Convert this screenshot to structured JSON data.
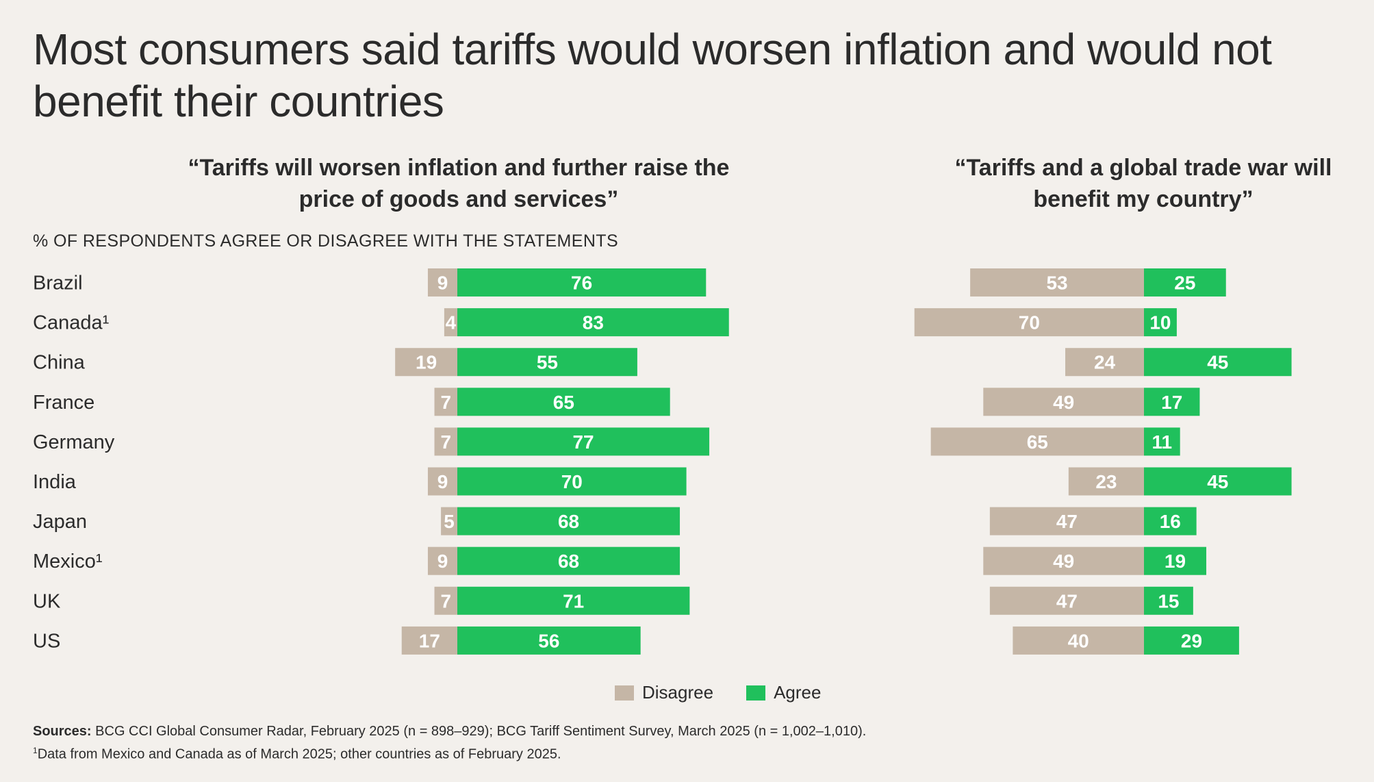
{
  "title": "Most consumers said tariffs would worsen inflation and would not benefit their countries",
  "unit_label": "% OF RESPONDENTS AGREE OR DISAGREE WITH THE STATEMENTS",
  "legend": {
    "disagree": "Disagree",
    "agree": "Agree"
  },
  "colors": {
    "disagree": "#c5b6a6",
    "agree": "#20c05c",
    "background": "#f3f0ec"
  },
  "footer": {
    "sources_label": "Sources:",
    "sources_text": "BCG CCI Global Consumer Radar, February 2025 (n = 898–929); BCG Tariff Sentiment Survey, March 2025 (n = 1,002–1,010).",
    "note_marker": "1",
    "note_text": "Data from Mexico and Canada as of March 2025; other countries as of February 2025."
  },
  "chart_data": [
    {
      "type": "bar",
      "orientation": "horizontal-diverging",
      "title": "“Tariffs will worsen inflation and further raise the price of goods and services”",
      "categories": [
        "Brazil",
        "Canada¹",
        "China",
        "France",
        "Germany",
        "India",
        "Japan",
        "Mexico¹",
        "UK",
        "US"
      ],
      "series": [
        {
          "name": "Disagree",
          "values": [
            9,
            4,
            19,
            7,
            7,
            9,
            5,
            9,
            7,
            17
          ]
        },
        {
          "name": "Agree",
          "values": [
            76,
            83,
            55,
            65,
            77,
            70,
            68,
            68,
            71,
            56
          ]
        }
      ],
      "xlabel": "",
      "ylabel": ""
    },
    {
      "type": "bar",
      "orientation": "horizontal-diverging",
      "title": "“Tariffs and a global trade war will benefit my country”",
      "categories": [
        "Brazil",
        "Canada¹",
        "China",
        "France",
        "Germany",
        "India",
        "Japan",
        "Mexico¹",
        "UK",
        "US"
      ],
      "series": [
        {
          "name": "Disagree",
          "values": [
            53,
            70,
            24,
            49,
            65,
            23,
            47,
            49,
            47,
            40
          ]
        },
        {
          "name": "Agree",
          "values": [
            25,
            10,
            45,
            17,
            11,
            45,
            16,
            19,
            15,
            29
          ]
        }
      ],
      "xlabel": "",
      "ylabel": ""
    }
  ]
}
